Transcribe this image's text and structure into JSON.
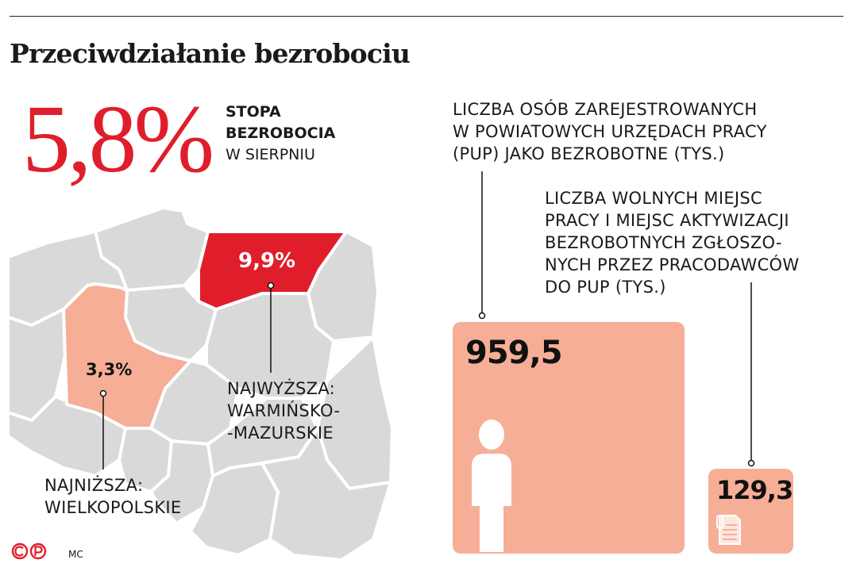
{
  "title": "Przeciwdziałanie bezrobociu",
  "headline": {
    "value": "5,8%",
    "label_line1": "STOPA",
    "label_line2": "BEZROBOCIA",
    "label_line3": "W SIERPNIU"
  },
  "map": {
    "highest": {
      "value": "9,9%",
      "label_line1": "NAJWYŻSZA:",
      "label_line2": "WARMIŃSKO-",
      "label_line3": "-MAZURSKIE"
    },
    "lowest": {
      "value": "3,3%",
      "label_line1": "NAJNIŻSZA:",
      "label_line2": "WIELKOPOLSKIE"
    }
  },
  "registered": {
    "label_lines": [
      "LICZBA OSÓB ZAREJESTROWANYCH",
      "W POWIATOWYCH URZĘDACH PRACY",
      "(PUP) JAKO BEZROBOTNE (TYS.)"
    ],
    "value": "959,5"
  },
  "vacancies": {
    "label_lines": [
      "LICZBA WOLNYCH MIEJSC",
      "PRACY I MIEJSC AKTYWIZACJI",
      "BEZROBOTNYCH ZGŁOSZO-",
      "NYCH PRZEZ PRACODAWCÓW",
      "DO PUP (TYS.)"
    ],
    "value": "129,3"
  },
  "footer": {
    "copyright_mark": "CP",
    "author": "MC"
  },
  "colors": {
    "accent_red": "#e01e2b",
    "salmon": "#f6ae97",
    "map_gray": "#d9d9da",
    "map_border": "#ffffff"
  },
  "chart_data": {
    "type": "bar",
    "categories": [
      "LICZBA OSÓB ZAREJESTROWANYCH W POWIATOWYCH URZĘDACH PRACY (PUP) JAKO BEZROBOTNE (TYS.)",
      "LICZBA WOLNYCH MIEJSC PRACY I MIEJSC AKTYWIZACJI BEZROBOTNYCH ZGŁOSZONYCH PRZEZ PRACODAWCÓW DO PUP (TYS.)"
    ],
    "values": [
      959.5,
      129.3
    ],
    "unemployment_rate": 5.8,
    "region_rates": [
      {
        "region": "WARMIŃSKO-MAZURSKIE",
        "rate": 9.9,
        "rank": "NAJWYŻSZA"
      },
      {
        "region": "WIELKOPOLSKIE",
        "rate": 3.3,
        "rank": "NAJNIŻSZA"
      }
    ]
  }
}
